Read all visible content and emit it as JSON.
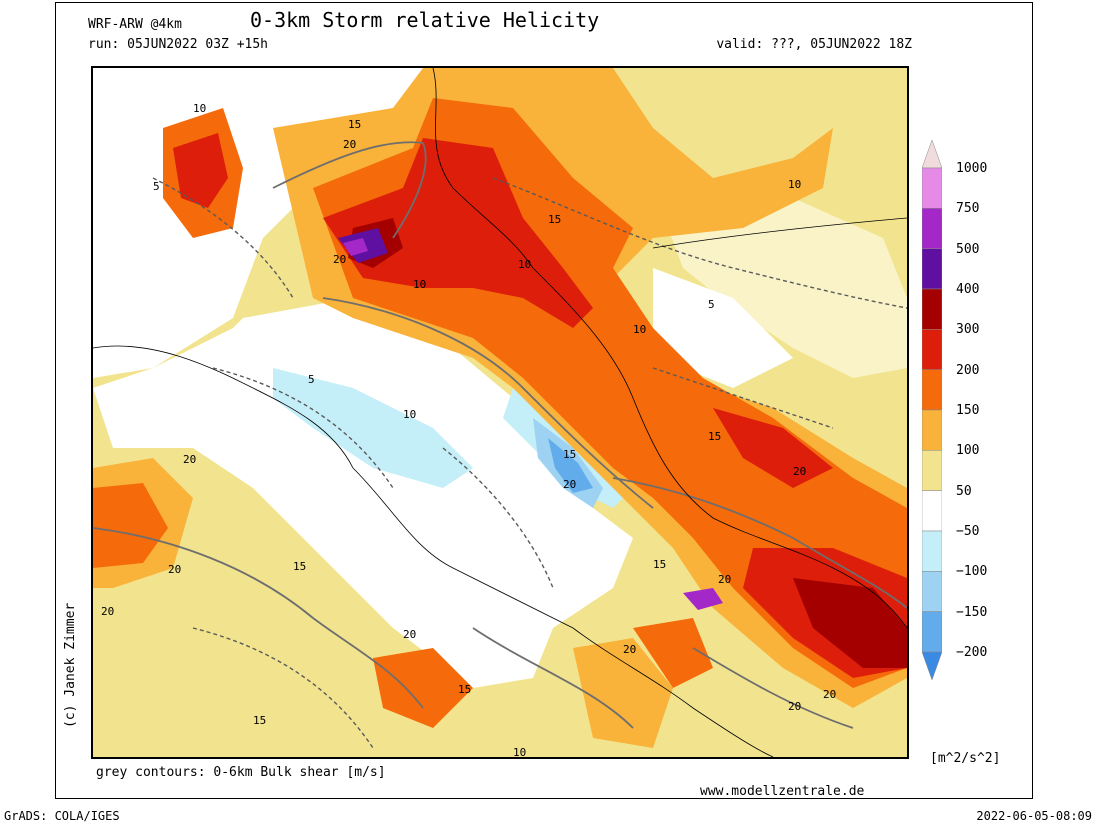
{
  "header": {
    "model": "WRF-ARW @4km",
    "title": "0-3km Storm relative Helicity",
    "run": "run: 05JUN2022 03Z +15h",
    "valid": "valid: ???, 05JUN2022 18Z"
  },
  "map": {
    "contour_labels": [
      "5",
      "10",
      "15",
      "20"
    ]
  },
  "legend": {
    "unit": "[m^2/s^2]",
    "levels": [
      {
        "label": "1000",
        "color": "#f0dcdc"
      },
      {
        "label": "750",
        "color": "#e58ae6"
      },
      {
        "label": "500",
        "color": "#a428c8"
      },
      {
        "label": "400",
        "color": "#6010a0"
      },
      {
        "label": "300",
        "color": "#a40000"
      },
      {
        "label": "200",
        "color": "#dc1e0a"
      },
      {
        "label": "150",
        "color": "#f56a0a"
      },
      {
        "label": "100",
        "color": "#f9b23a"
      },
      {
        "label": "50",
        "color": "#f2e48e"
      },
      {
        "label": "−50",
        "color": "#ffffff"
      },
      {
        "label": "−100",
        "color": "#c4eef8"
      },
      {
        "label": "−150",
        "color": "#9ed2f2"
      },
      {
        "label": "−200",
        "color": "#62acec"
      },
      {
        "label": "",
        "color": "#3a8ae4"
      }
    ]
  },
  "footer": {
    "contours_note": "grey contours: 0-6km Bulk shear [m/s]",
    "website": "www.modellzentrale.de",
    "copyright": "(c) Janek Zimmer",
    "software": "GrADS: COLA/IGES",
    "timestamp": "2022-06-05-08:09"
  }
}
